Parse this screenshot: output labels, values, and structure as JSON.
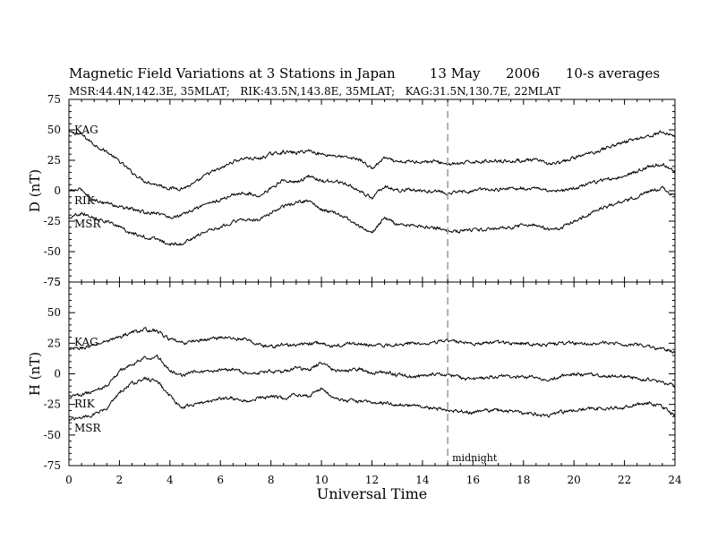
{
  "title": "Magnetic Field Variations at 3 Stations in Japan        13 May      2006      10-s averages",
  "subtitle": "MSR:44.4N,142.3E, 35MLAT;   RIK:43.5N,143.8E, 35MLAT;   KAG:31.5N,130.7E, 22MLAT",
  "chart_data": [
    {
      "type": "line",
      "ylabel": "D (nT)",
      "ylim": [
        -75,
        75
      ],
      "yticks": [
        "75",
        "50",
        "25",
        "0",
        "-25",
        "-50",
        "-75"
      ],
      "xlim": [
        0,
        24
      ],
      "grid": false,
      "series": [
        {
          "name": "KAG",
          "x": [
            0,
            0.5,
            1,
            1.5,
            2,
            2.5,
            3,
            3.5,
            4,
            4.5,
            5,
            5.5,
            6,
            6.5,
            7,
            7.5,
            8,
            8.5,
            9,
            9.5,
            10,
            10.5,
            11,
            11.5,
            12,
            12.5,
            13,
            13.5,
            14,
            14.5,
            15,
            15.5,
            16,
            16.5,
            17,
            17.5,
            18,
            18.5,
            19,
            19.5,
            20,
            20.5,
            21,
            21.5,
            22,
            22.5,
            23,
            23.5,
            24
          ],
          "y": [
            48,
            46,
            38,
            32,
            24,
            15,
            8,
            5,
            2,
            2,
            6,
            14,
            18,
            24,
            27,
            26,
            30,
            32,
            31,
            33,
            30,
            29,
            27,
            26,
            18,
            27,
            23,
            24,
            24,
            24,
            22,
            22,
            24,
            24,
            25,
            24,
            25,
            25,
            22,
            23,
            27,
            30,
            33,
            37,
            40,
            43,
            45,
            48,
            45
          ]
        },
        {
          "name": "RIK",
          "x": [
            0,
            0.5,
            1,
            1.5,
            2,
            2.5,
            3,
            3.5,
            4,
            4.5,
            5,
            5.5,
            6,
            6.5,
            7,
            7.5,
            8,
            8.5,
            9,
            9.5,
            10,
            10.5,
            11,
            11.5,
            12,
            12.5,
            13,
            13.5,
            14,
            14.5,
            15,
            15.5,
            16,
            16.5,
            17,
            17.5,
            18,
            18.5,
            19,
            19.5,
            20,
            20.5,
            21,
            21.5,
            22,
            22.5,
            23,
            23.5,
            24
          ],
          "y": [
            0,
            1,
            -8,
            -10,
            -13,
            -15,
            -18,
            -18,
            -22,
            -20,
            -15,
            -10,
            -8,
            -3,
            -2,
            -4,
            2,
            9,
            7,
            12,
            8,
            8,
            5,
            0,
            -6,
            4,
            0,
            1,
            0,
            0,
            -2,
            -1,
            0,
            1,
            1,
            2,
            2,
            2,
            0,
            0,
            2,
            5,
            8,
            10,
            12,
            16,
            20,
            22,
            15
          ]
        },
        {
          "name": "MSR",
          "x": [
            0,
            0.5,
            1,
            1.5,
            2,
            2.5,
            3,
            3.5,
            4,
            4.5,
            5,
            5.5,
            6,
            6.5,
            7,
            7.5,
            8,
            8.5,
            9,
            9.5,
            10,
            10.5,
            11,
            11.5,
            12,
            12.5,
            13,
            13.5,
            14,
            14.5,
            15,
            15.5,
            16,
            16.5,
            17,
            17.5,
            18,
            18.5,
            19,
            19.5,
            20,
            20.5,
            21,
            21.5,
            22,
            22.5,
            23,
            23.5,
            24
          ],
          "y": [
            -22,
            -18,
            -22,
            -25,
            -30,
            -35,
            -38,
            -40,
            -44,
            -43,
            -38,
            -32,
            -30,
            -25,
            -24,
            -24,
            -18,
            -13,
            -10,
            -8,
            -16,
            -18,
            -22,
            -30,
            -35,
            -22,
            -28,
            -28,
            -30,
            -30,
            -33,
            -33,
            -32,
            -32,
            -31,
            -30,
            -28,
            -28,
            -32,
            -30,
            -25,
            -20,
            -15,
            -12,
            -8,
            -5,
            0,
            2,
            -5
          ]
        }
      ],
      "annotations": []
    },
    {
      "type": "line",
      "ylabel": "H (nT)",
      "ylim": [
        -75,
        75
      ],
      "yticks": [
        "75",
        "50",
        "25",
        "0",
        "-25",
        "-50",
        "-75"
      ],
      "xlim": [
        0,
        24
      ],
      "xticks": [
        "0",
        "2",
        "4",
        "6",
        "8",
        "10",
        "12",
        "14",
        "16",
        "18",
        "20",
        "22",
        "24"
      ],
      "xlabel": "Universal Time",
      "grid": false,
      "series": [
        {
          "name": "KAG",
          "x": [
            0,
            0.5,
            1,
            1.5,
            2,
            2.5,
            3,
            3.5,
            4,
            4.5,
            5,
            5.5,
            6,
            6.5,
            7,
            7.5,
            8,
            8.5,
            9,
            9.5,
            10,
            10.5,
            11,
            11.5,
            12,
            12.5,
            13,
            13.5,
            14,
            14.5,
            15,
            15.5,
            16,
            16.5,
            17,
            17.5,
            18,
            18.5,
            19,
            19.5,
            20,
            20.5,
            21,
            21.5,
            22,
            22.5,
            23,
            23.5,
            24
          ],
          "y": [
            20,
            21,
            23,
            27,
            30,
            34,
            36,
            35,
            28,
            25,
            27,
            28,
            30,
            29,
            28,
            24,
            22,
            24,
            23,
            25,
            25,
            22,
            25,
            24,
            24,
            23,
            24,
            25,
            25,
            26,
            27,
            26,
            25,
            25,
            26,
            25,
            25,
            24,
            24,
            25,
            25,
            25,
            25,
            25,
            24,
            24,
            22,
            20,
            18
          ]
        },
        {
          "name": "RIK",
          "x": [
            0,
            0.5,
            1,
            1.5,
            2,
            2.5,
            3,
            3.5,
            4,
            4.5,
            5,
            5.5,
            6,
            6.5,
            7,
            7.5,
            8,
            8.5,
            9,
            9.5,
            10,
            10.5,
            11,
            11.5,
            12,
            12.5,
            13,
            13.5,
            14,
            14.5,
            15,
            15.5,
            16,
            16.5,
            17,
            17.5,
            18,
            18.5,
            19,
            19.5,
            20,
            20.5,
            21,
            21.5,
            22,
            22.5,
            23,
            23.5,
            24
          ],
          "y": [
            -18,
            -17,
            -14,
            -10,
            2,
            8,
            13,
            14,
            3,
            -2,
            2,
            1,
            3,
            4,
            0,
            1,
            2,
            1,
            5,
            3,
            9,
            3,
            2,
            4,
            0,
            2,
            -1,
            -2,
            -2,
            0,
            -1,
            -3,
            -5,
            -3,
            -2,
            -2,
            -3,
            -2,
            -6,
            -2,
            0,
            -1,
            -1,
            -2,
            -2,
            -4,
            -5,
            -7,
            -10
          ]
        },
        {
          "name": "MSR",
          "x": [
            0,
            0.5,
            1,
            1.5,
            2,
            2.5,
            3,
            3.5,
            4,
            4.5,
            5,
            5.5,
            6,
            6.5,
            7,
            7.5,
            8,
            8.5,
            9,
            9.5,
            10,
            10.5,
            11,
            11.5,
            12,
            12.5,
            13,
            13.5,
            14,
            14.5,
            15,
            15.5,
            16,
            16.5,
            17,
            17.5,
            18,
            18.5,
            19,
            19.5,
            20,
            20.5,
            21,
            21.5,
            22,
            22.5,
            23,
            23.5,
            24
          ],
          "y": [
            -37,
            -36,
            -33,
            -28,
            -15,
            -8,
            -4,
            -6,
            -18,
            -28,
            -24,
            -23,
            -20,
            -20,
            -22,
            -20,
            -19,
            -20,
            -17,
            -18,
            -12,
            -20,
            -22,
            -22,
            -24,
            -24,
            -25,
            -26,
            -27,
            -28,
            -30,
            -30,
            -32,
            -30,
            -30,
            -31,
            -32,
            -33,
            -35,
            -31,
            -30,
            -29,
            -28,
            -28,
            -27,
            -25,
            -24,
            -27,
            -34
          ]
        }
      ],
      "annotations": [
        {
          "text": "midnight",
          "x": 15
        }
      ]
    }
  ],
  "midnight_ut": 15,
  "colors": {
    "trace": "#000000",
    "midnight_line": "#a0a0a0"
  }
}
